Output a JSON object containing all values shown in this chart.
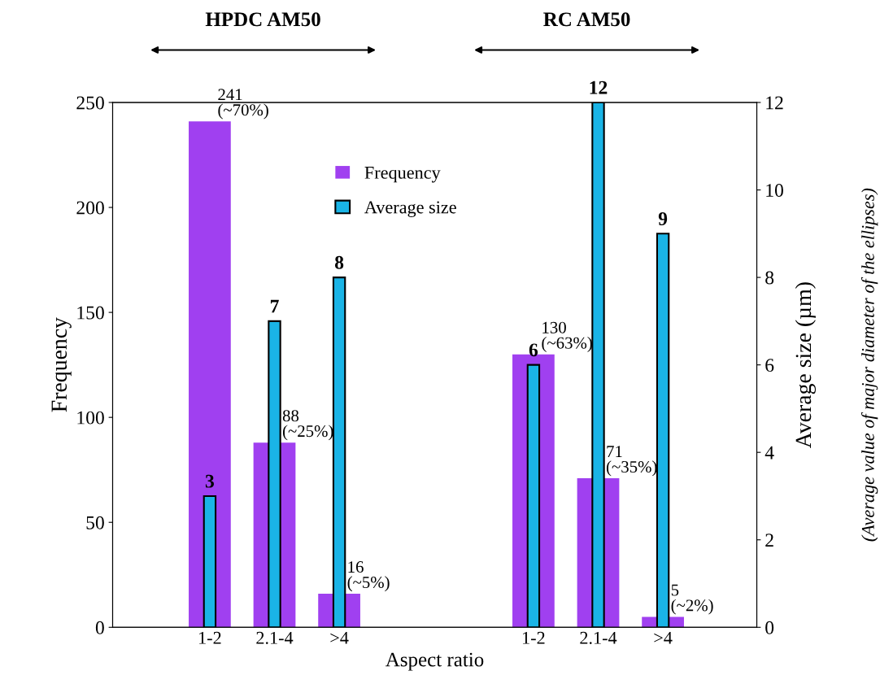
{
  "chart_data": {
    "type": "bar",
    "xlabel": "Aspect ratio",
    "ylabel": "Frequency",
    "y2label": "Average size (µm)\n(Average value of major diameter of the ellipses)",
    "categories": [
      "1-2",
      "2.1-4",
      ">4",
      null,
      null,
      "1-2",
      "2.1-4",
      ">4"
    ],
    "series": [
      {
        "name": "Frequency",
        "color": "#a040f0",
        "values": [
          241,
          88,
          16,
          null,
          null,
          130,
          71,
          5
        ],
        "value_labels": [
          "241\n(~70%)",
          "88\n(~25%)",
          "16\n(~5%)",
          null,
          null,
          "130\n(~63%)",
          "71\n(~35%)",
          "5\n(~2%)"
        ]
      },
      {
        "name": "Average size",
        "color": "#1ab4e6",
        "axis": "y2",
        "values": [
          3,
          7,
          8,
          null,
          null,
          6,
          12,
          9
        ],
        "value_labels": [
          "3",
          "7",
          "8",
          null,
          null,
          "6",
          "12",
          "9"
        ]
      }
    ],
    "ylim": [
      0,
      250
    ],
    "yticks": [
      0,
      50,
      100,
      150,
      200,
      250
    ],
    "y2lim": [
      0,
      12
    ],
    "y2ticks": [
      0,
      2,
      4,
      6,
      8,
      10,
      12
    ],
    "annotations": [
      "HPDC AM50",
      "RC AM50"
    ],
    "legend": "top center",
    "grid": false
  }
}
